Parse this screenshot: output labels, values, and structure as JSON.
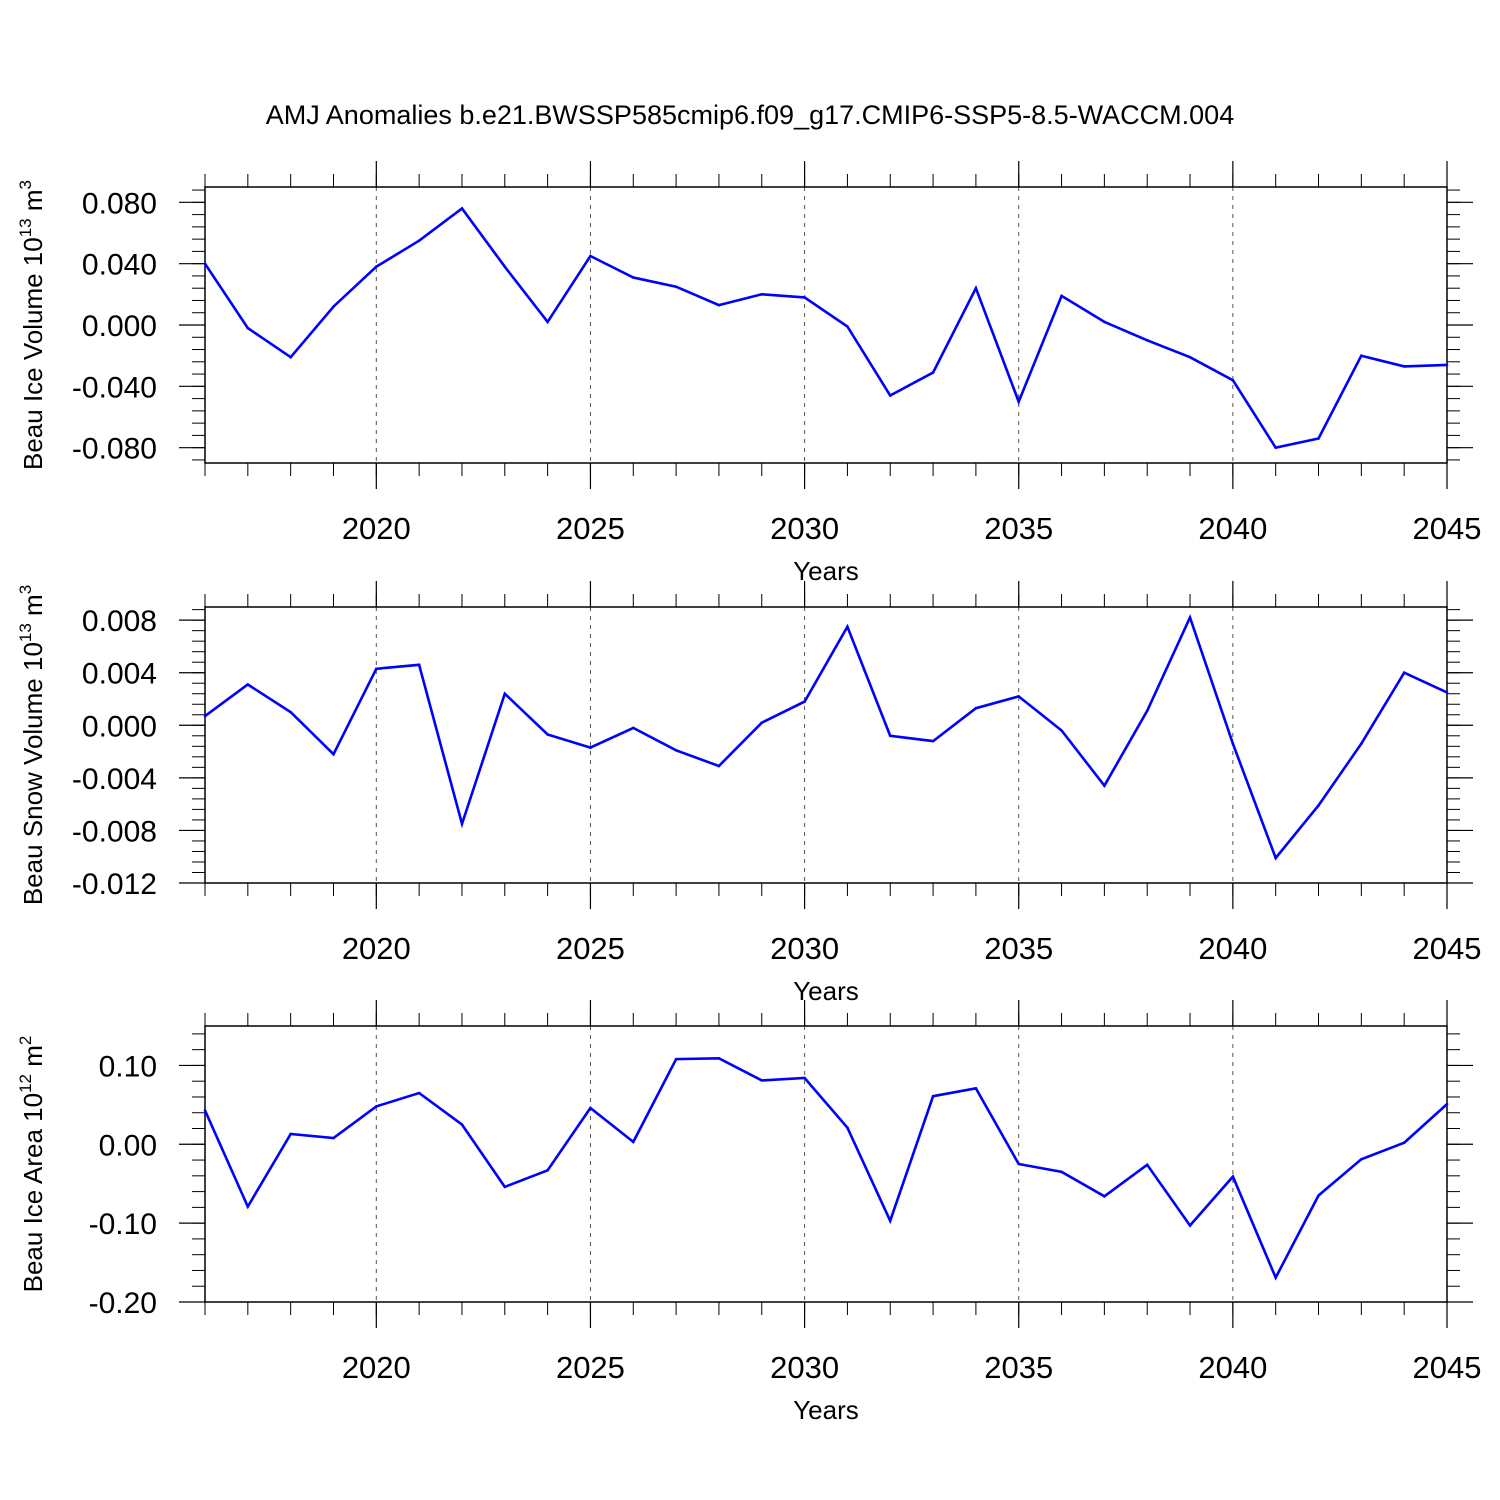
{
  "title": "AMJ Anomalies b.e21.BWSSP585cmip6.f09_g17.CMIP6-SSP5-8.5-WACCM.004",
  "line_color": "#0000ff",
  "chart_data": [
    {
      "type": "line",
      "ylabel_main": "Beau Ice Volume 10",
      "ylabel_exp": "13",
      "ylabel_unit": " m",
      "ylabel_unit_exp": "3",
      "xlabel": "Years",
      "xlim": [
        2016,
        2045
      ],
      "ylim": [
        -0.09,
        0.09
      ],
      "x_ticks": [
        2020,
        2025,
        2030,
        2035,
        2040,
        2045
      ],
      "x_tick_labels": [
        "2020",
        "2025",
        "2030",
        "2035",
        "2040",
        "2045"
      ],
      "y_ticks": [
        0.08,
        0.04,
        0.0,
        -0.04,
        -0.08
      ],
      "y_tick_labels": [
        "0.080",
        "0.040",
        "0.000",
        "-0.040",
        "-0.080"
      ],
      "x": [
        2016,
        2017,
        2018,
        2019,
        2020,
        2021,
        2022,
        2023,
        2024,
        2025,
        2026,
        2027,
        2028,
        2029,
        2030,
        2031,
        2032,
        2033,
        2034,
        2035,
        2036,
        2037,
        2038,
        2039,
        2040,
        2041,
        2042,
        2043,
        2044,
        2045
      ],
      "values": [
        0.04,
        -0.002,
        -0.021,
        0.012,
        0.038,
        0.055,
        0.076,
        0.038,
        0.002,
        0.045,
        0.031,
        0.025,
        0.013,
        0.02,
        0.018,
        -0.001,
        -0.046,
        -0.031,
        0.024,
        -0.05,
        0.019,
        0.002,
        -0.01,
        -0.021,
        -0.036,
        -0.08,
        -0.074,
        -0.02,
        -0.027,
        -0.026
      ]
    },
    {
      "type": "line",
      "ylabel_main": "Beau Snow Volume 10",
      "ylabel_exp": "13",
      "ylabel_unit": " m",
      "ylabel_unit_exp": "3",
      "xlabel": "Years",
      "xlim": [
        2016,
        2045
      ],
      "ylim": [
        -0.012,
        0.009
      ],
      "x_ticks": [
        2020,
        2025,
        2030,
        2035,
        2040,
        2045
      ],
      "x_tick_labels": [
        "2020",
        "2025",
        "2030",
        "2035",
        "2040",
        "2045"
      ],
      "y_ticks": [
        0.008,
        0.004,
        0.0,
        -0.004,
        -0.008,
        -0.012
      ],
      "y_tick_labels": [
        "0.008",
        "0.004",
        "0.000",
        "-0.004",
        "-0.008",
        "-0.012"
      ],
      "x": [
        2016,
        2017,
        2018,
        2019,
        2020,
        2021,
        2022,
        2023,
        2024,
        2025,
        2026,
        2027,
        2028,
        2029,
        2030,
        2031,
        2032,
        2033,
        2034,
        2035,
        2036,
        2037,
        2038,
        2039,
        2040,
        2041,
        2042,
        2043,
        2044,
        2045
      ],
      "values": [
        0.0007,
        0.0031,
        0.001,
        -0.0022,
        0.0043,
        0.0046,
        -0.0075,
        0.0024,
        -0.0007,
        -0.0017,
        -0.0002,
        -0.0019,
        -0.0031,
        0.0002,
        0.0018,
        0.0075,
        -0.0008,
        -0.0012,
        0.0013,
        0.0022,
        -0.0004,
        -0.0046,
        0.0011,
        0.0082,
        -0.0014,
        -0.0101,
        -0.0061,
        -0.0014,
        0.004,
        0.0025
      ]
    },
    {
      "type": "line",
      "ylabel_main": "Beau Ice Area 10",
      "ylabel_exp": "12",
      "ylabel_unit": " m",
      "ylabel_unit_exp": "2",
      "xlabel": "Years",
      "xlim": [
        2016,
        2045
      ],
      "ylim": [
        -0.2,
        0.15
      ],
      "x_ticks": [
        2020,
        2025,
        2030,
        2035,
        2040,
        2045
      ],
      "x_tick_labels": [
        "2020",
        "2025",
        "2030",
        "2035",
        "2040",
        "2045"
      ],
      "y_ticks": [
        0.1,
        0.0,
        -0.1,
        -0.2
      ],
      "y_tick_labels": [
        "0.10",
        "0.00",
        "-0.10",
        "-0.20"
      ],
      "x": [
        2016,
        2017,
        2018,
        2019,
        2020,
        2021,
        2022,
        2023,
        2024,
        2025,
        2026,
        2027,
        2028,
        2029,
        2030,
        2031,
        2032,
        2033,
        2034,
        2035,
        2036,
        2037,
        2038,
        2039,
        2040,
        2041,
        2042,
        2043,
        2044,
        2045
      ],
      "values": [
        0.043,
        -0.079,
        0.013,
        0.008,
        0.048,
        0.065,
        0.025,
        -0.054,
        -0.033,
        0.046,
        0.003,
        0.108,
        0.109,
        0.081,
        0.084,
        0.021,
        -0.097,
        0.061,
        0.071,
        -0.025,
        -0.035,
        -0.066,
        -0.026,
        -0.103,
        -0.041,
        -0.169,
        -0.065,
        -0.019,
        0.002,
        0.051
      ]
    }
  ]
}
